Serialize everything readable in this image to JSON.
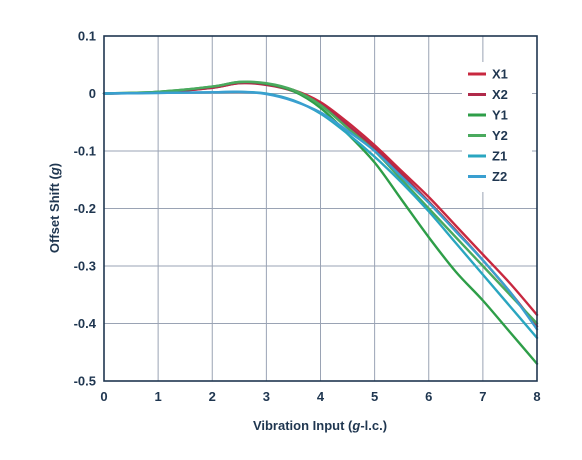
{
  "chart_data": {
    "type": "line",
    "xlabel": "Vibration Input (g-l.c.)",
    "ylabel": "Offset Shift (g)",
    "xlim": [
      0,
      8
    ],
    "ylim": [
      -0.5,
      0.1
    ],
    "xticks": [
      0,
      1,
      2,
      3,
      4,
      5,
      6,
      7,
      8
    ],
    "xtick_labels": [
      "0",
      "1",
      "2",
      "3",
      "4",
      "5",
      "6",
      "7",
      "8"
    ],
    "yticks": [
      0.1,
      0,
      -0.1,
      -0.2,
      -0.3,
      -0.4,
      -0.5
    ],
    "ytick_labels": [
      "0.1",
      "0",
      "-0.1",
      "-0.2",
      "-0.3",
      "-0.4",
      "-0.5"
    ],
    "grid": true,
    "legend_position": "top-right",
    "series": [
      {
        "name": "X1",
        "color": "#c8283f",
        "x": [
          0,
          1,
          2,
          2.5,
          3,
          3.5,
          4,
          4.5,
          5,
          5.5,
          6,
          6.5,
          7,
          7.5,
          8
        ],
        "y": [
          0,
          0.002,
          0.01,
          0.018,
          0.016,
          0.006,
          -0.015,
          -0.05,
          -0.09,
          -0.135,
          -0.18,
          -0.23,
          -0.28,
          -0.33,
          -0.385
        ]
      },
      {
        "name": "X2",
        "color": "#b02a4a",
        "x": [
          0,
          1,
          2,
          2.5,
          3,
          3.5,
          4,
          4.5,
          5,
          5.5,
          6,
          6.5,
          7,
          7.5,
          8
        ],
        "y": [
          0,
          0.002,
          0.01,
          0.018,
          0.015,
          0.004,
          -0.018,
          -0.055,
          -0.095,
          -0.14,
          -0.188,
          -0.238,
          -0.29,
          -0.345,
          -0.405
        ]
      },
      {
        "name": "Y1",
        "color": "#2e9e48",
        "x": [
          0,
          1,
          2,
          2.5,
          3,
          3.5,
          4,
          4.5,
          5,
          5.5,
          6,
          6.5,
          7,
          7.5,
          8
        ],
        "y": [
          0,
          0.003,
          0.012,
          0.02,
          0.017,
          0.004,
          -0.025,
          -0.07,
          -0.12,
          -0.185,
          -0.25,
          -0.31,
          -0.36,
          -0.415,
          -0.47
        ]
      },
      {
        "name": "Y2",
        "color": "#4aaa5e",
        "x": [
          0,
          1,
          2,
          2.5,
          3,
          3.5,
          4,
          4.5,
          5,
          5.5,
          6,
          6.5,
          7,
          7.5,
          8
        ],
        "y": [
          0,
          0.003,
          0.012,
          0.02,
          0.018,
          0.006,
          -0.02,
          -0.06,
          -0.1,
          -0.15,
          -0.2,
          -0.25,
          -0.3,
          -0.35,
          -0.4
        ]
      },
      {
        "name": "Z1",
        "color": "#2aa6c0",
        "x": [
          0,
          1,
          2,
          2.5,
          3,
          3.5,
          4,
          4.5,
          5,
          5.5,
          6,
          6.5,
          7,
          7.5,
          8
        ],
        "y": [
          0,
          0.001,
          0.002,
          0.003,
          0.0,
          -0.012,
          -0.035,
          -0.07,
          -0.11,
          -0.155,
          -0.205,
          -0.26,
          -0.315,
          -0.37,
          -0.425
        ]
      },
      {
        "name": "Z2",
        "color": "#3a9fd0",
        "x": [
          0,
          1,
          2,
          2.5,
          3,
          3.5,
          4,
          4.5,
          5,
          5.5,
          6,
          6.5,
          7,
          7.5,
          8
        ],
        "y": [
          0,
          0.001,
          0.002,
          0.003,
          -0.001,
          -0.013,
          -0.033,
          -0.065,
          -0.1,
          -0.145,
          -0.19,
          -0.24,
          -0.29,
          -0.345,
          -0.41
        ]
      }
    ]
  }
}
